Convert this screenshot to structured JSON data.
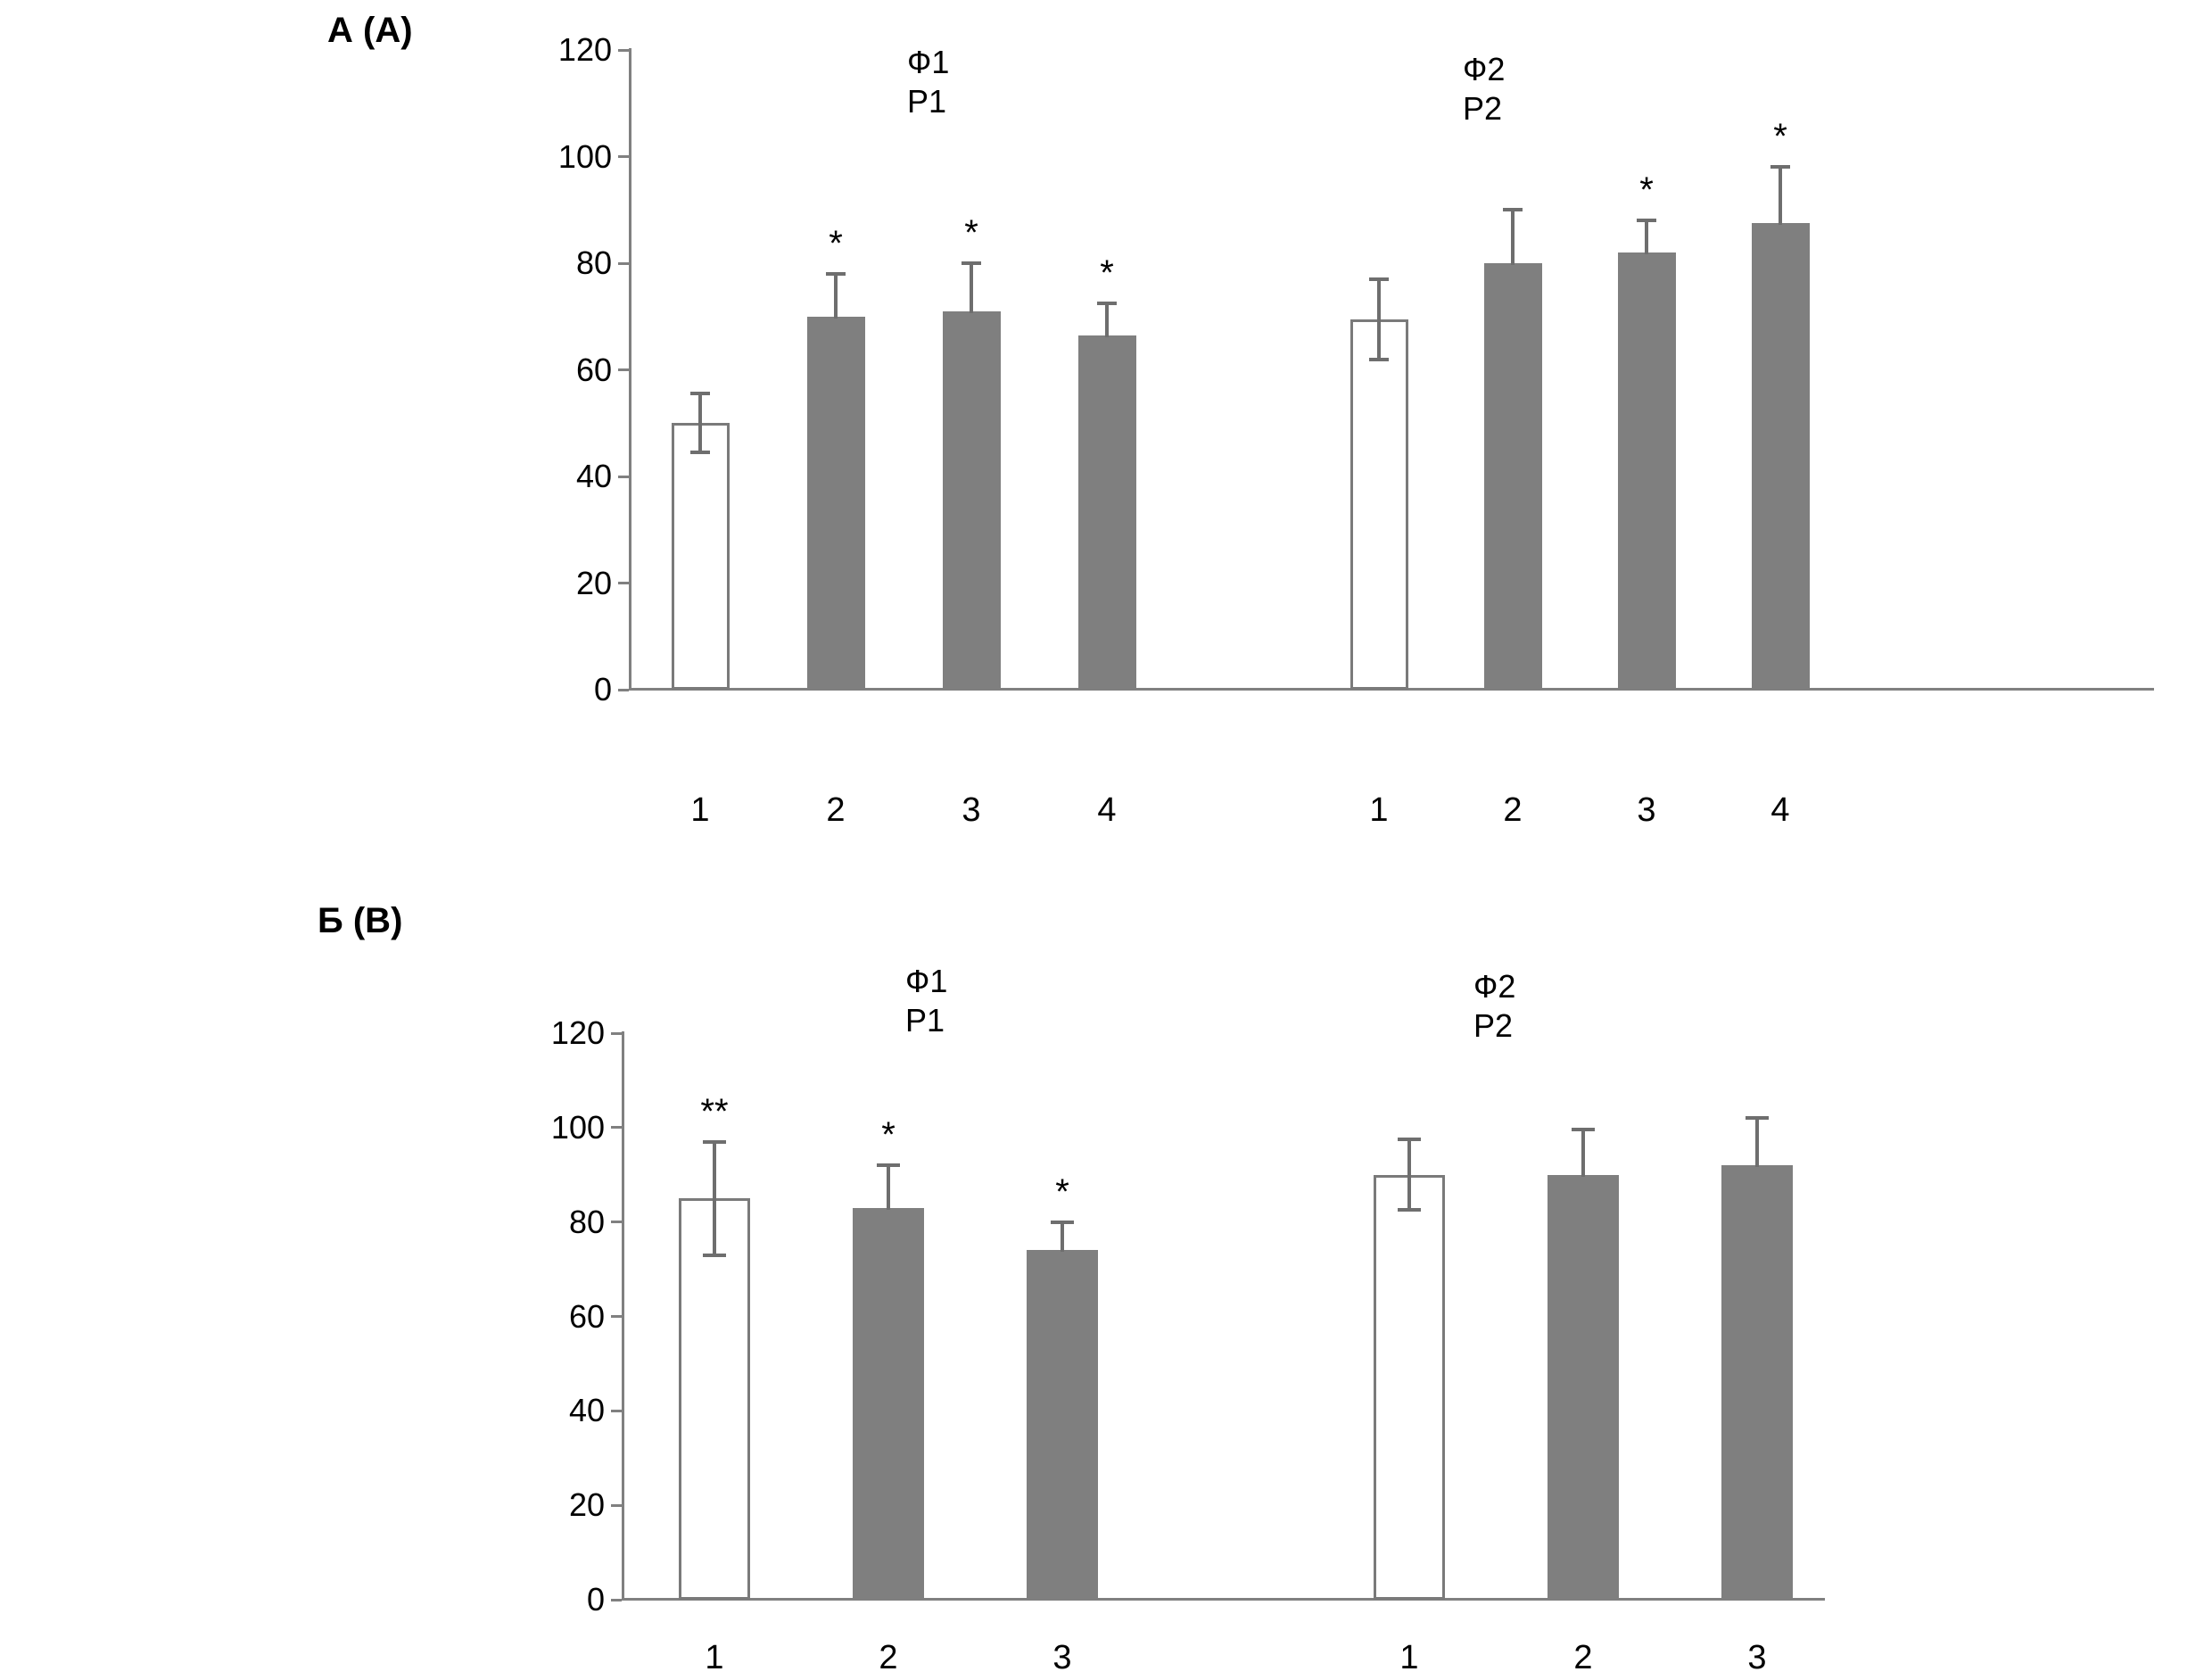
{
  "page": {
    "background": "#ffffff"
  },
  "colors": {
    "bar_gray": "#7f7f7f",
    "bar_white": "#ffffff",
    "bar_border": "#7a7a7a",
    "error_bar": "#6e6e6e",
    "axis": "#808080",
    "text": "#000000"
  },
  "chart_data": [
    {
      "id": "A",
      "type": "bar",
      "panel_label": "А (A)",
      "title": "",
      "xlabel": "",
      "ylabel": "",
      "ylim": [
        0,
        120
      ],
      "ytick_step": 20,
      "yticks": [
        0,
        20,
        40,
        60,
        80,
        100,
        120
      ],
      "grid": false,
      "legend": null,
      "groups": [
        {
          "label_top": "Ф1",
          "label_bottom": "P1",
          "bars": [
            {
              "x_label": "1",
              "value": 50,
              "err_up": 5.5,
              "err_down": 5.5,
              "style": "white",
              "annotation": ""
            },
            {
              "x_label": "2",
              "value": 70,
              "err_up": 8,
              "err_down": null,
              "style": "gray",
              "annotation": "*"
            },
            {
              "x_label": "3",
              "value": 71,
              "err_up": 9,
              "err_down": null,
              "style": "gray",
              "annotation": "*"
            },
            {
              "x_label": "4",
              "value": 66.5,
              "err_up": 6,
              "err_down": null,
              "style": "gray",
              "annotation": "*"
            }
          ]
        },
        {
          "label_top": "Ф2",
          "label_bottom": "P2",
          "bars": [
            {
              "x_label": "1",
              "value": 69.5,
              "err_up": 7.5,
              "err_down": 7.5,
              "style": "white",
              "annotation": ""
            },
            {
              "x_label": "2",
              "value": 80,
              "err_up": 10,
              "err_down": null,
              "style": "gray",
              "annotation": ""
            },
            {
              "x_label": "3",
              "value": 82,
              "err_up": 6,
              "err_down": null,
              "style": "gray",
              "annotation": "*"
            },
            {
              "x_label": "4",
              "value": 87.5,
              "err_up": 10.5,
              "err_down": null,
              "style": "gray",
              "annotation": "*"
            }
          ]
        }
      ]
    },
    {
      "id": "B",
      "type": "bar",
      "panel_label": "Б (B)",
      "title": "",
      "xlabel": "",
      "ylabel": "",
      "ylim": [
        0,
        120
      ],
      "ytick_step": 20,
      "yticks": [
        0,
        20,
        40,
        60,
        80,
        100,
        120
      ],
      "grid": false,
      "legend": null,
      "groups": [
        {
          "label_top": "Ф1",
          "label_bottom": "P1",
          "bars": [
            {
              "x_label": "1",
              "value": 85,
              "err_up": 12,
              "err_down": 12,
              "style": "white",
              "annotation": "**"
            },
            {
              "x_label": "2",
              "value": 83,
              "err_up": 9,
              "err_down": null,
              "style": "gray",
              "annotation": "*"
            },
            {
              "x_label": "3",
              "value": 74,
              "err_up": 6,
              "err_down": null,
              "style": "gray",
              "annotation": "*"
            }
          ]
        },
        {
          "label_top": "Ф2",
          "label_bottom": "P2",
          "bars": [
            {
              "x_label": "1",
              "value": 90,
              "err_up": 7.5,
              "err_down": 7.5,
              "style": "white",
              "annotation": ""
            },
            {
              "x_label": "2",
              "value": 90,
              "err_up": 9.5,
              "err_down": null,
              "style": "gray",
              "annotation": ""
            },
            {
              "x_label": "3",
              "value": 92,
              "err_up": 10,
              "err_down": null,
              "style": "gray",
              "annotation": ""
            }
          ]
        }
      ]
    }
  ]
}
